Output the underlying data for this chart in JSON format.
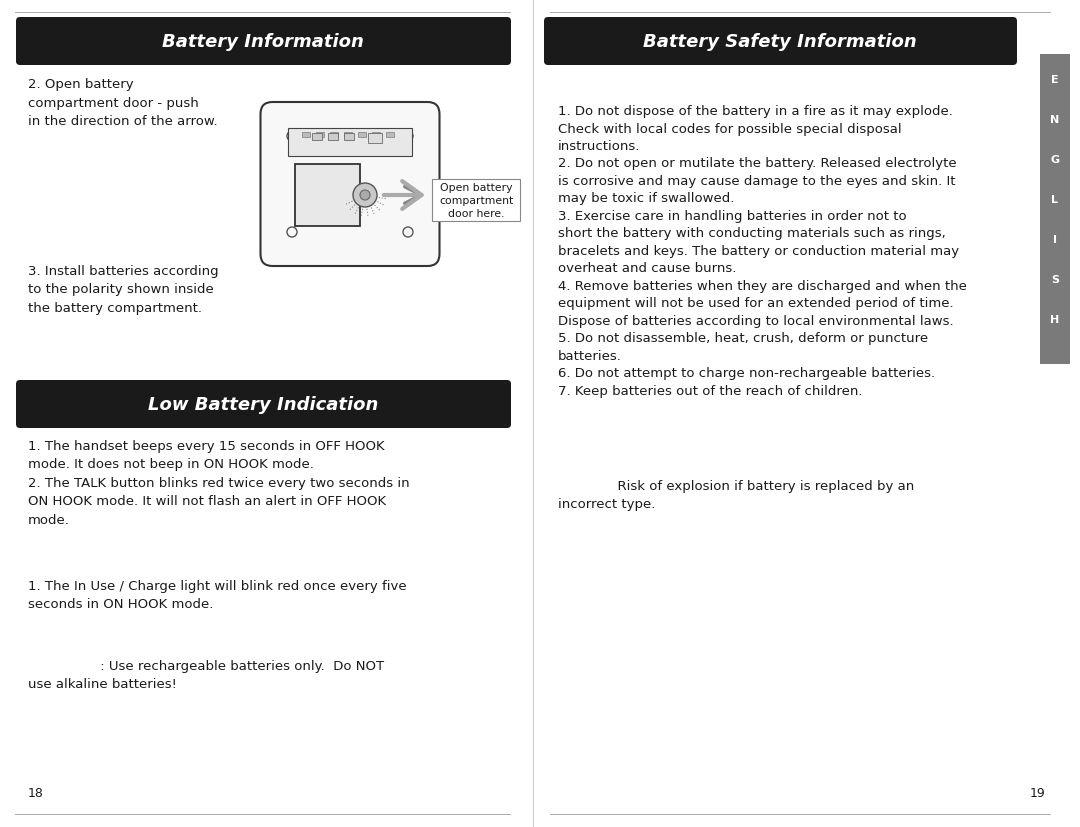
{
  "page_bg": "#ffffff",
  "header_bg": "#1a1a1a",
  "header_text_color": "#ffffff",
  "body_text_color": "#1a1a1a",
  "sidebar_bg": "#7a7a7a",
  "sidebar_letters": [
    "E",
    "N",
    "G",
    "L",
    "I",
    "S",
    "H"
  ],
  "left_header": "Battery Information",
  "right_header": "Battery Safety Information",
  "low_battery_header": "Low Battery Indication",
  "battery_info_text": "2. Open battery\ncompartment door - push\nin the direction of the arrow.",
  "battery_info_text2": "3. Install batteries according\nto the polarity shown inside\nthe battery compartment.",
  "open_battery_label": "Open battery\ncompartment\ndoor here.",
  "handset_text": "1. The handset beeps every 15 seconds in OFF HOOK\nmode. It does not beep in ON HOOK mode.\n2. The TALK button blinks red twice every two seconds in\nON HOOK mode. It will not flash an alert in OFF HOOK\nmode.",
  "base_text": "1. The In Use / Charge light will blink red once every five\nseconds in ON HOOK mode.",
  "warning_text": "                 : Use rechargeable batteries only.  Do NOT\nuse alkaline batteries!",
  "safety_text_lines": [
    "1. Do not dispose of the battery in a fire as it may explode.",
    "Check with local codes for possible special disposal",
    "instructions.",
    "2. Do not open or mutilate the battery. Released electrolyte",
    "is corrosive and may cause damage to the eyes and skin. It",
    "may be toxic if swallowed.",
    "3. Exercise care in handling batteries in order not to",
    "short the battery with conducting materials such as rings,",
    "bracelets and keys. The battery or conduction material may",
    "overheat and cause burns.",
    "4. Remove batteries when they are discharged and when the",
    "equipment will not be used for an extended period of time.",
    "Dispose of batteries according to local environmental laws.",
    "5. Do not disassemble, heat, crush, deform or puncture",
    "batteries.",
    "6. Do not attempt to charge non-rechargeable batteries.",
    "7. Keep batteries out of the reach of children."
  ],
  "risk_text": "              Risk of explosion if battery is replaced by an\nincorrect type.",
  "page_num_left": "18",
  "page_num_right": "19"
}
